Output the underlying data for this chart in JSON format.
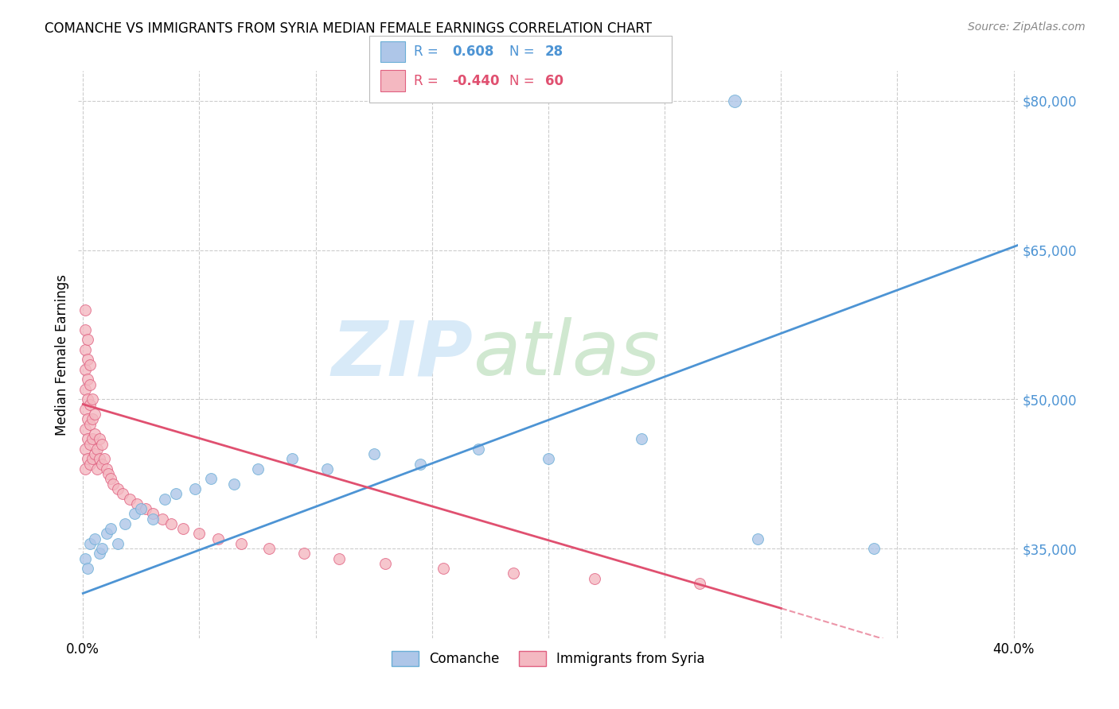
{
  "title": "COMANCHE VS IMMIGRANTS FROM SYRIA MEDIAN FEMALE EARNINGS CORRELATION CHART",
  "source": "Source: ZipAtlas.com",
  "ylabel": "Median Female Earnings",
  "xlim": [
    -0.002,
    0.402
  ],
  "ylim": [
    26000,
    83000
  ],
  "ytick_positions": [
    35000,
    50000,
    65000,
    80000
  ],
  "ytick_labels": [
    "$35,000",
    "$50,000",
    "$65,000",
    "$80,000"
  ],
  "background_color": "#ffffff",
  "grid_color": "#cccccc",
  "comanche_color": "#aec6e8",
  "syria_color": "#f4b8c1",
  "comanche_edge": "#6aaed6",
  "syria_edge": "#e06080",
  "line_blue": "#4d94d4",
  "line_pink": "#e05070",
  "legend_R_blue": "0.608",
  "legend_N_blue": "28",
  "legend_R_pink": "-0.440",
  "legend_N_pink": "60",
  "legend_label_blue": "Comanche",
  "legend_label_pink": "Immigrants from Syria",
  "comanche_x": [
    0.001,
    0.002,
    0.003,
    0.005,
    0.007,
    0.008,
    0.01,
    0.012,
    0.015,
    0.018,
    0.022,
    0.025,
    0.03,
    0.035,
    0.04,
    0.048,
    0.055,
    0.065,
    0.075,
    0.09,
    0.105,
    0.125,
    0.145,
    0.17,
    0.2,
    0.24,
    0.29,
    0.34
  ],
  "comanche_y": [
    34000,
    33000,
    35500,
    36000,
    34500,
    35000,
    36500,
    37000,
    35500,
    37500,
    38500,
    39000,
    38000,
    40000,
    40500,
    41000,
    42000,
    41500,
    43000,
    44000,
    43000,
    44500,
    43500,
    45000,
    44000,
    46000,
    36000,
    35000
  ],
  "syria_x": [
    0.001,
    0.001,
    0.001,
    0.001,
    0.001,
    0.001,
    0.001,
    0.001,
    0.001,
    0.002,
    0.002,
    0.002,
    0.002,
    0.002,
    0.002,
    0.002,
    0.003,
    0.003,
    0.003,
    0.003,
    0.003,
    0.003,
    0.004,
    0.004,
    0.004,
    0.004,
    0.005,
    0.005,
    0.005,
    0.006,
    0.006,
    0.007,
    0.007,
    0.008,
    0.008,
    0.009,
    0.01,
    0.011,
    0.012,
    0.013,
    0.015,
    0.017,
    0.02,
    0.023,
    0.027,
    0.03,
    0.034,
    0.038,
    0.043,
    0.05,
    0.058,
    0.068,
    0.08,
    0.095,
    0.11,
    0.13,
    0.155,
    0.185,
    0.22,
    0.265
  ],
  "syria_y": [
    43000,
    45000,
    47000,
    49000,
    51000,
    53000,
    55000,
    57000,
    59000,
    44000,
    46000,
    48000,
    50000,
    52000,
    54000,
    56000,
    43500,
    45500,
    47500,
    49500,
    51500,
    53500,
    44000,
    46000,
    48000,
    50000,
    44500,
    46500,
    48500,
    43000,
    45000,
    44000,
    46000,
    43500,
    45500,
    44000,
    43000,
    42500,
    42000,
    41500,
    41000,
    40500,
    40000,
    39500,
    39000,
    38500,
    38000,
    37500,
    37000,
    36500,
    36000,
    35500,
    35000,
    34500,
    34000,
    33500,
    33000,
    32500,
    32000,
    31500
  ],
  "outlier_comanche_x": [
    0.28
  ],
  "outlier_comanche_y": [
    80000
  ],
  "blue_line_x0": 0.0,
  "blue_line_y0": 30500,
  "blue_line_x1": 0.402,
  "blue_line_y1": 65500,
  "pink_line_x0": 0.0,
  "pink_line_y0": 49500,
  "pink_line_x1": 0.3,
  "pink_line_y1": 29000,
  "pink_line_dash_x1": 0.35,
  "pink_line_dash_y1": 25500
}
